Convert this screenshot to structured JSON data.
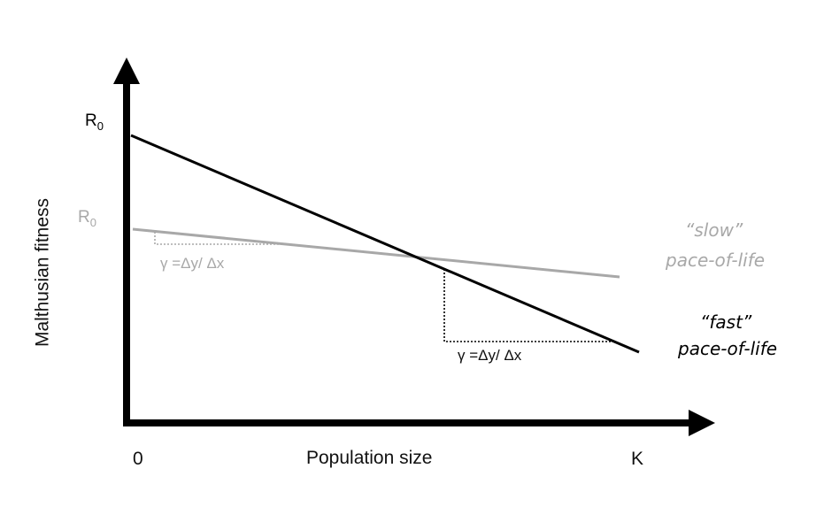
{
  "colors": {
    "black": "#000000",
    "gray": "#a8a8a8"
  },
  "axes": {
    "ylabel": "Malthusian fitness",
    "xlabel": "Population size",
    "x_start": "0",
    "x_end": "K"
  },
  "fast": {
    "r0_base": "R",
    "r0_sub": "0",
    "gamma": "γ =Δy/ Δx",
    "label_line1": "“fast”",
    "label_line2": "pace-of-life"
  },
  "slow": {
    "r0_base": "R",
    "r0_sub": "0",
    "gamma": "γ =Δy/ Δx",
    "label_line1": "“slow”",
    "label_line2": "pace-of-life"
  }
}
